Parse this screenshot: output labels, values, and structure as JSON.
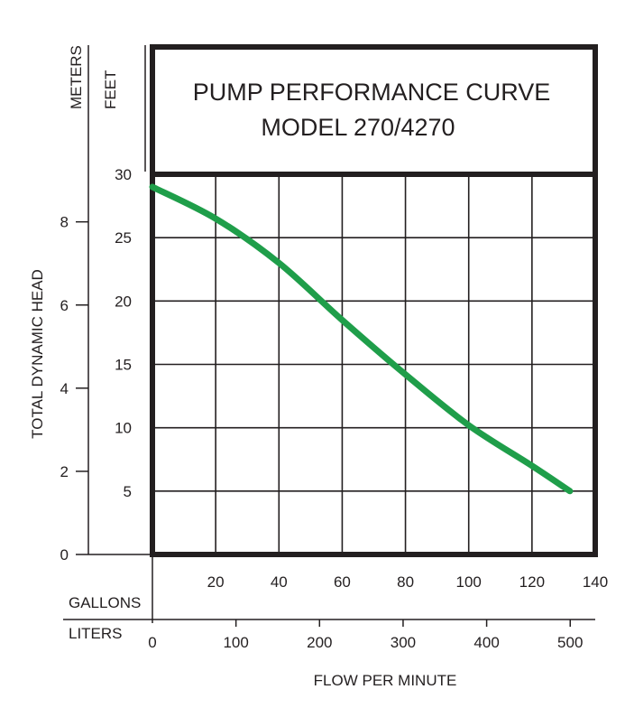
{
  "chart_data": {
    "type": "line",
    "title": "PUMP PERFORMANCE CURVE",
    "subtitle": "MODEL 270/4270",
    "ylabel": "TOTAL DYNAMIC HEAD",
    "xlabel": "FLOW PER MINUTE",
    "y_units": {
      "primary": "FEET",
      "secondary": "METERS"
    },
    "x_units": {
      "primary": "GALLONS",
      "secondary": "LITERS"
    },
    "ylim_feet": [
      0,
      30
    ],
    "xlim_gallons": [
      0,
      140
    ],
    "y_ticks_feet": [
      "5",
      "10",
      "15",
      "20",
      "25",
      "30"
    ],
    "y_tick_values_feet": [
      5,
      10,
      15,
      20,
      25,
      30
    ],
    "y_ticks_meters": [
      "0",
      "2",
      "4",
      "6",
      "8"
    ],
    "y_tick_values_meters": [
      0,
      2,
      4,
      6,
      8
    ],
    "x_ticks_gallons": [
      "20",
      "40",
      "60",
      "80",
      "100",
      "120",
      "140"
    ],
    "x_tick_values_gallons": [
      20,
      40,
      60,
      80,
      100,
      120,
      140
    ],
    "x_ticks_liters": [
      "0",
      "100",
      "200",
      "300",
      "400",
      "500"
    ],
    "x_tick_values_liters": [
      0,
      100,
      200,
      300,
      400,
      500
    ],
    "grid": true,
    "series": [
      {
        "color": "#1f9e4a",
        "x": [
          0,
          20,
          40,
          60,
          80,
          100,
          120,
          132
        ],
        "y": [
          29,
          26.5,
          23,
          18.5,
          14.2,
          10.2,
          7,
          5
        ]
      }
    ]
  }
}
